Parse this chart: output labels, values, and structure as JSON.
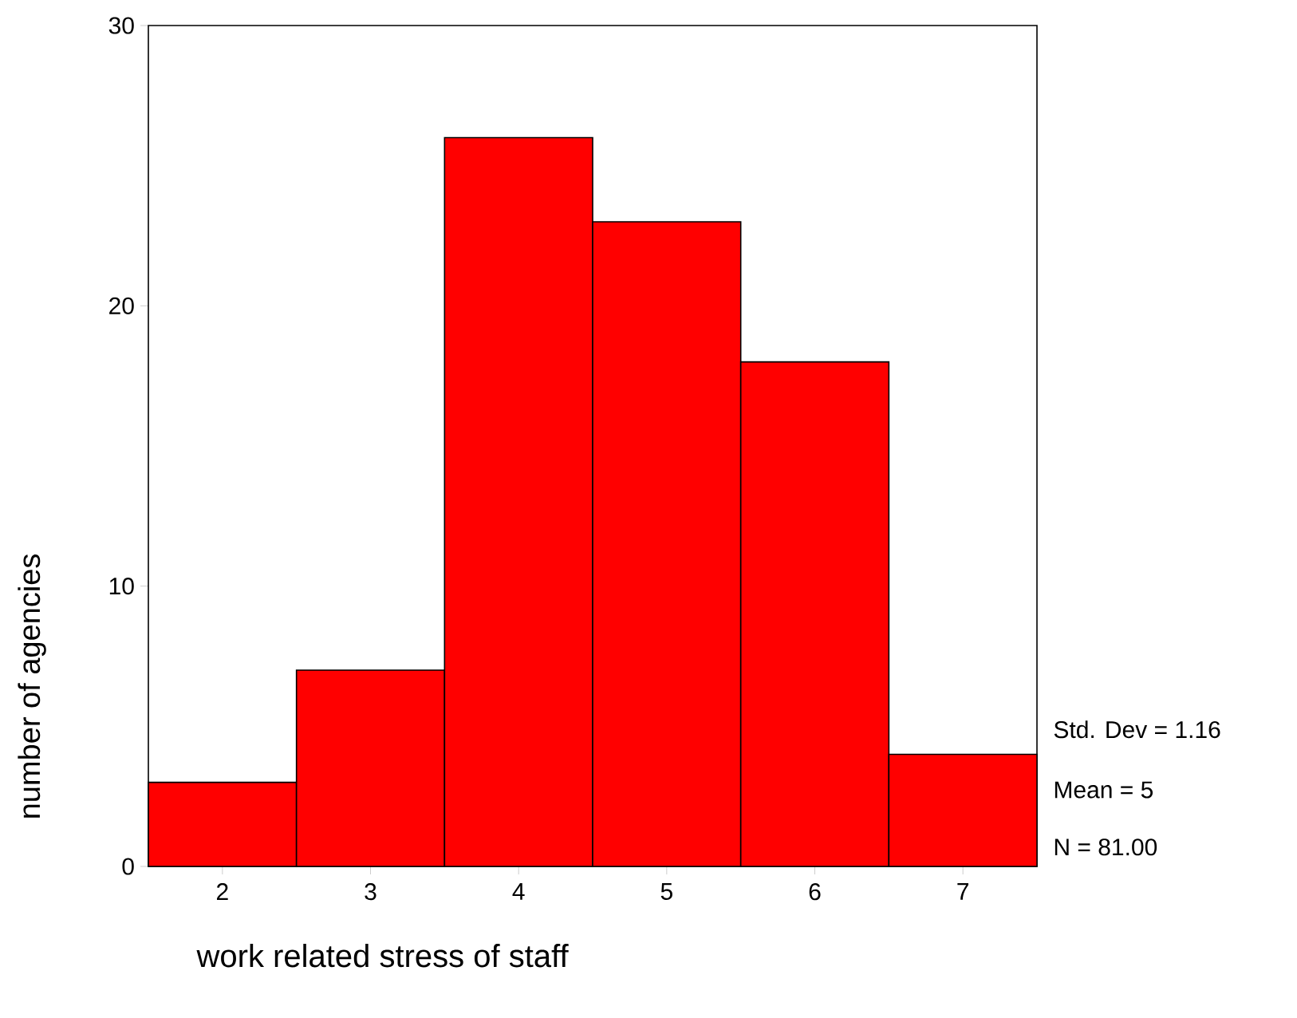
{
  "chart_data": {
    "type": "histogram",
    "xlabel": "work related stress of staff",
    "ylabel": "number of agencies",
    "bins": [
      1.5,
      2.5,
      3.5,
      4.5,
      5.5,
      6.5,
      7.5
    ],
    "values": [
      3,
      7,
      26,
      23,
      18,
      4
    ],
    "color": "#ff0000",
    "xlim": [
      1.5,
      7.5
    ],
    "ylim": [
      0,
      30
    ],
    "xticks": [
      2,
      3,
      4,
      5,
      6,
      7
    ],
    "yticks": [
      0,
      10,
      20,
      30
    ],
    "annotations": [
      "Std. Dev = 1.16",
      "Mean = 5",
      "N = 81.00"
    ]
  }
}
